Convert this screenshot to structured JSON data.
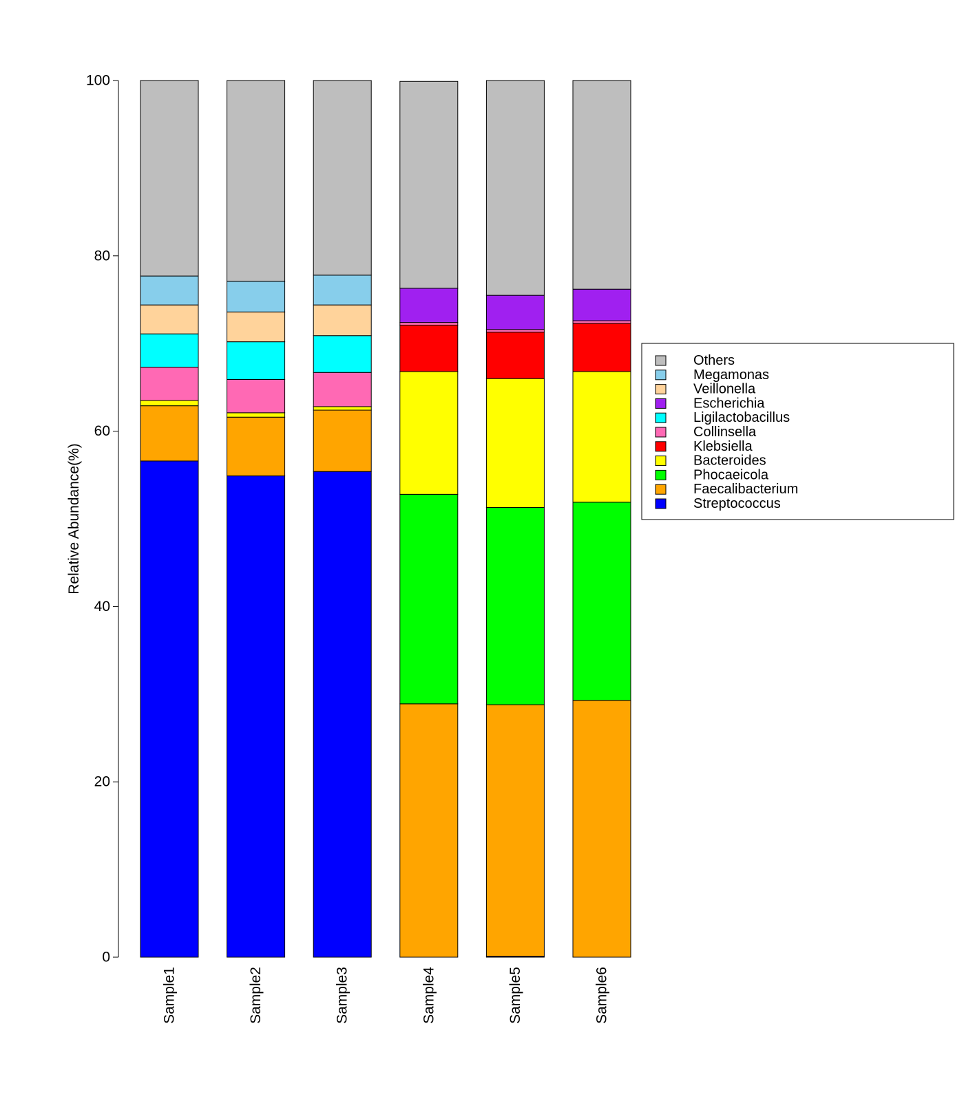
{
  "chart_data": {
    "type": "bar",
    "stacked": true,
    "ylabel": "Relative Abundance(%)",
    "xlabel": "",
    "ylim": [
      0,
      100
    ],
    "yticks": [
      0,
      20,
      40,
      60,
      80,
      100
    ],
    "categories": [
      "Sample1",
      "Sample2",
      "Sample3",
      "Sample4",
      "Sample5",
      "Sample6"
    ],
    "legend_position": "right",
    "series": [
      {
        "name": "Streptococcus",
        "color": "#0000FF",
        "values": [
          56.6,
          54.9,
          55.4,
          0.0,
          0.1,
          0.0
        ]
      },
      {
        "name": "Faecalibacterium",
        "color": "#FFA500",
        "values": [
          6.3,
          6.7,
          7.0,
          28.9,
          28.7,
          29.3
        ]
      },
      {
        "name": "Phocaeicola",
        "color": "#00FF00",
        "values": [
          0.0,
          0.0,
          0.0,
          23.9,
          22.5,
          22.6
        ]
      },
      {
        "name": "Bacteroides",
        "color": "#FFFF00",
        "values": [
          0.6,
          0.5,
          0.4,
          14.0,
          14.7,
          14.9
        ]
      },
      {
        "name": "Klebsiella",
        "color": "#FF0000",
        "values": [
          0.0,
          0.0,
          0.0,
          5.3,
          5.3,
          5.5
        ]
      },
      {
        "name": "Collinsella",
        "color": "#FF69B4",
        "values": [
          3.8,
          3.8,
          3.9,
          0.3,
          0.3,
          0.3
        ]
      },
      {
        "name": "Ligilactobacillus",
        "color": "#00FFFF",
        "values": [
          3.8,
          4.3,
          4.2,
          0.0,
          0.0,
          0.0
        ]
      },
      {
        "name": "Escherichia",
        "color": "#A020F0",
        "values": [
          0.0,
          0.0,
          0.0,
          3.9,
          3.9,
          3.6
        ]
      },
      {
        "name": "Veillonella",
        "color": "#FFD39B",
        "values": [
          3.3,
          3.4,
          3.5,
          0.0,
          0.0,
          0.0
        ]
      },
      {
        "name": "Megamonas",
        "color": "#87CEEB",
        "values": [
          3.3,
          3.5,
          3.4,
          0.0,
          0.0,
          0.0
        ]
      },
      {
        "name": "Others",
        "color": "#BEBEBE",
        "values": [
          22.3,
          22.9,
          22.2,
          23.6,
          24.5,
          23.8
        ]
      }
    ]
  }
}
